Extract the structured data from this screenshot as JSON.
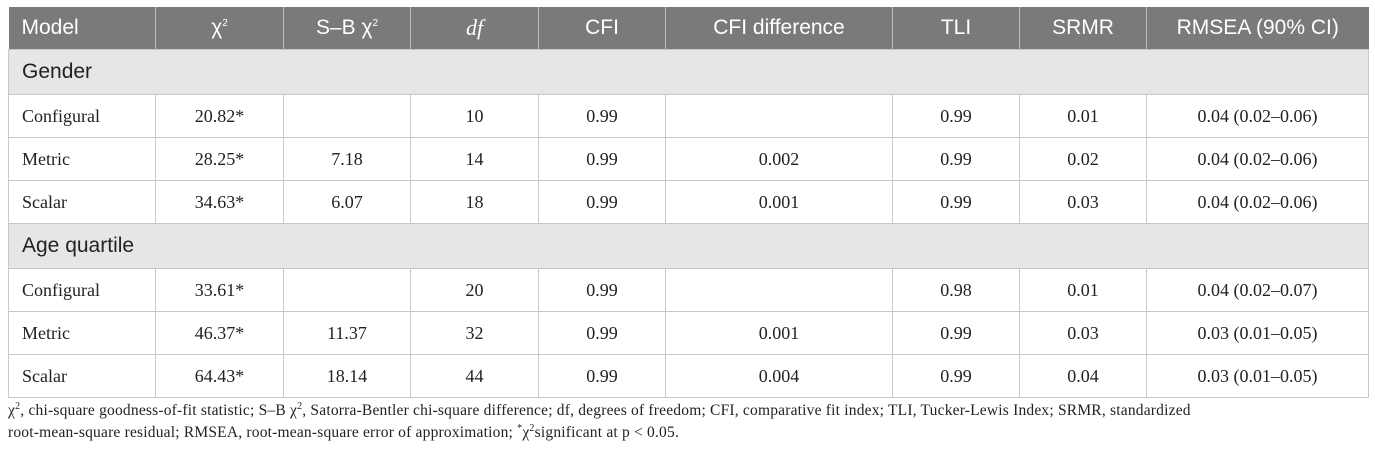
{
  "table": {
    "columns": [
      {
        "key": "model",
        "label": "Model"
      },
      {
        "key": "chi2",
        "label": "χ",
        "sup": "2"
      },
      {
        "key": "sb",
        "label": "S–B χ",
        "sup": "2"
      },
      {
        "key": "df",
        "label": "df"
      },
      {
        "key": "cfi",
        "label": "CFI"
      },
      {
        "key": "cfi_diff",
        "label": "CFI difference"
      },
      {
        "key": "tli",
        "label": "TLI"
      },
      {
        "key": "srmr",
        "label": "SRMR"
      },
      {
        "key": "rmsea",
        "label": "RMSEA (90% CI)"
      }
    ],
    "groups": [
      {
        "label": "Gender",
        "rows": [
          {
            "model": "Configural",
            "chi2": "20.82*",
            "sb": "",
            "df": "10",
            "cfi": "0.99",
            "cfi_diff": "",
            "tli": "0.99",
            "srmr": "0.01",
            "rmsea": "0.04 (0.02–0.06)"
          },
          {
            "model": "Metric",
            "chi2": "28.25*",
            "sb": "7.18",
            "df": "14",
            "cfi": "0.99",
            "cfi_diff": "0.002",
            "tli": "0.99",
            "srmr": "0.02",
            "rmsea": "0.04 (0.02–0.06)"
          },
          {
            "model": "Scalar",
            "chi2": "34.63*",
            "sb": "6.07",
            "df": "18",
            "cfi": "0.99",
            "cfi_diff": "0.001",
            "tli": "0.99",
            "srmr": "0.03",
            "rmsea": "0.04 (0.02–0.06)"
          }
        ]
      },
      {
        "label": "Age quartile",
        "rows": [
          {
            "model": "Configural",
            "chi2": "33.61*",
            "sb": "",
            "df": "20",
            "cfi": "0.99",
            "cfi_diff": "",
            "tli": "0.98",
            "srmr": "0.01",
            "rmsea": "0.04 (0.02–0.07)"
          },
          {
            "model": "Metric",
            "chi2": "46.37*",
            "sb": "11.37",
            "df": "32",
            "cfi": "0.99",
            "cfi_diff": "0.001",
            "tli": "0.99",
            "srmr": "0.03",
            "rmsea": "0.03 (0.01–0.05)"
          },
          {
            "model": "Scalar",
            "chi2": "64.43*",
            "sb": "18.14",
            "df": "44",
            "cfi": "0.99",
            "cfi_diff": "0.004",
            "tli": "0.99",
            "srmr": "0.04",
            "rmsea": "0.03 (0.01–0.05)"
          }
        ]
      }
    ]
  },
  "footnote": {
    "line1_a": "χ",
    "line1_b": ", chi-square goodness-of-fit statistic; S–B χ",
    "line1_c": ", Satorra-Bentler chi-square difference; df, degrees of freedom; CFI, comparative fit index; TLI, Tucker-Lewis Index; SRMR, standardized",
    "line2_a": "root-mean-square residual; RMSEA, root-mean-square error of approximation; ",
    "line2_b": "*",
    "line2_c": "χ",
    "line2_d": "significant at p < 0.05.",
    "sup": "2"
  },
  "colors": {
    "header_bg": "#7a7a7a",
    "group_bg": "#e6e6e6",
    "border": "#c8c8c8"
  }
}
